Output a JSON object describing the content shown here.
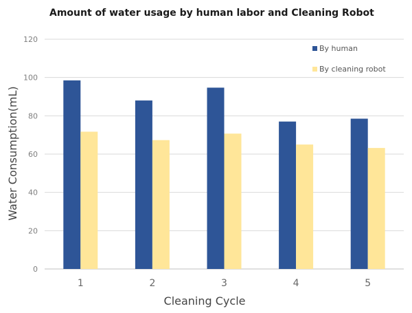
{
  "chart_data": {
    "type": "bar",
    "title": "Amount of water usage by human labor and Cleaning Robot",
    "xlabel": "Cleaning  Cycle",
    "ylabel": "Water Consumption(mL)",
    "categories": [
      "1",
      "2",
      "3",
      "4",
      "5"
    ],
    "series": [
      {
        "name": "By human",
        "color": "#2e5597",
        "values": [
          98.5,
          88,
          94.7,
          77,
          78.5
        ]
      },
      {
        "name": "By cleaning robot",
        "color": "#ffe699",
        "values": [
          71.7,
          67.3,
          70.7,
          65,
          63.2
        ]
      }
    ],
    "ylim": [
      0,
      120
    ],
    "yticks": [
      0,
      20,
      40,
      60,
      80,
      100,
      120
    ],
    "grid": true,
    "legend": "top-right"
  }
}
